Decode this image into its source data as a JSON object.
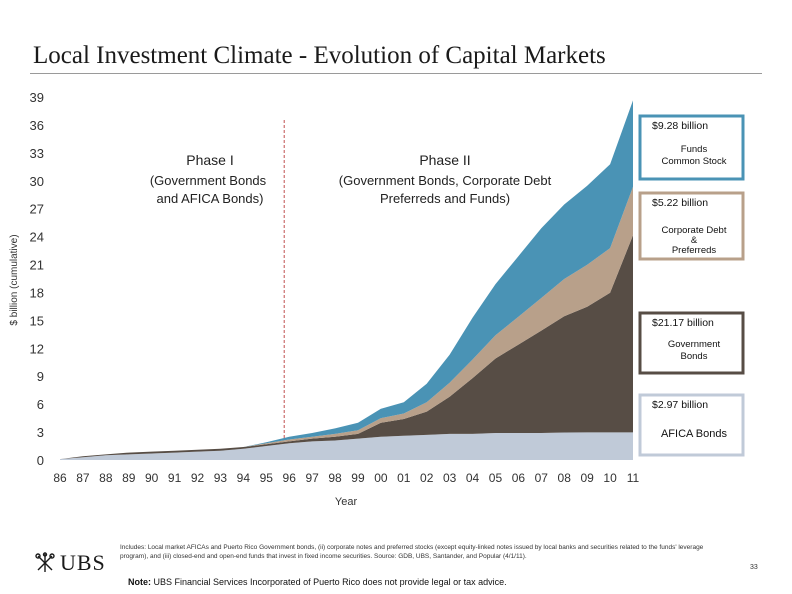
{
  "slide": {
    "title": "Local Investment Climate - Evolution of Capital Markets",
    "footnote": "Includes: Local market AFICAs and Puerto Rico Government bonds, (ii) corporate notes and preferred stocks (except equity-linked notes issued by local banks and securities related to the funds' leverage program), and (iii) closed-end and open-end funds that invest in fixed income securities. Source: GDB, UBS, Santander, and Popular (4/1/11).",
    "note_label": "Note:",
    "note_text": " UBS Financial Services Incorporated of Puerto Rico does not provide legal or tax advice.",
    "page_number": "33",
    "logo_text": "UBS"
  },
  "colors": {
    "afica": "#c0cad8",
    "government": "#574d45",
    "corporate": "#b8a08a",
    "funds": "#4a93b5"
  },
  "chart_data": {
    "type": "area",
    "stacked": true,
    "ylabel": "$ billion (cumulative)",
    "xlabel": "Year",
    "ylim": [
      0,
      39
    ],
    "yticks": [
      "0",
      "3",
      "6",
      "9",
      "12",
      "15",
      "18",
      "21",
      "24",
      "27",
      "30",
      "33",
      "36",
      "39"
    ],
    "categories": [
      "86",
      "87",
      "88",
      "89",
      "90",
      "91",
      "92",
      "93",
      "94",
      "95",
      "96",
      "97",
      "98",
      "99",
      "00",
      "01",
      "02",
      "03",
      "04",
      "05",
      "06",
      "07",
      "08",
      "09",
      "10",
      "11"
    ],
    "series": [
      {
        "name": "AFICA Bonds",
        "color_key": "afica",
        "values": [
          0.1,
          0.3,
          0.5,
          0.6,
          0.7,
          0.8,
          0.9,
          1.0,
          1.2,
          1.5,
          1.8,
          2.0,
          2.1,
          2.3,
          2.5,
          2.6,
          2.7,
          2.8,
          2.8,
          2.9,
          2.9,
          2.9,
          2.95,
          2.97,
          2.97,
          2.97
        ]
      },
      {
        "name": "Government Bonds",
        "color_key": "government",
        "values": [
          0.0,
          0.1,
          0.1,
          0.2,
          0.2,
          0.2,
          0.2,
          0.2,
          0.2,
          0.2,
          0.2,
          0.3,
          0.4,
          0.5,
          1.5,
          1.8,
          2.5,
          4.0,
          6.0,
          8.0,
          9.5,
          11.0,
          12.5,
          13.5,
          15.0,
          21.17
        ]
      },
      {
        "name": "Corporate Debt & Preferreds",
        "color_key": "corporate",
        "values": [
          0.0,
          0.0,
          0.0,
          0.0,
          0.0,
          0.0,
          0.0,
          0.0,
          0.0,
          0.1,
          0.2,
          0.2,
          0.3,
          0.4,
          0.5,
          0.6,
          1.0,
          1.5,
          2.0,
          2.5,
          3.0,
          3.5,
          4.0,
          4.5,
          4.8,
          5.22
        ]
      },
      {
        "name": "Funds Common Stock",
        "color_key": "funds",
        "values": [
          0.0,
          0.0,
          0.0,
          0.0,
          0.0,
          0.0,
          0.0,
          0.0,
          0.0,
          0.1,
          0.3,
          0.4,
          0.6,
          0.8,
          1.0,
          1.2,
          2.0,
          3.0,
          4.5,
          5.5,
          6.5,
          7.5,
          8.0,
          8.5,
          9.0,
          9.28
        ]
      }
    ],
    "phase_divider_x": "96",
    "annotations": [
      {
        "title": "Phase I",
        "text1": "(Government Bonds",
        "text2": "and AFICA Bonds)"
      },
      {
        "title": "Phase II",
        "text1": "(Government Bonds, Corporate Debt",
        "text2": "Preferreds and Funds)"
      }
    ],
    "legend": [
      {
        "amount": "$9.28 billion",
        "label1": "Funds",
        "label2": "Common Stock",
        "label3": "",
        "color_key": "funds"
      },
      {
        "amount": "$5.22 billion",
        "label1": "Corporate Debt",
        "label2": "&",
        "label3": "Preferreds",
        "color_key": "corporate"
      },
      {
        "amount": "$21.17 billion",
        "label1": "Government",
        "label2": "Bonds",
        "label3": "",
        "color_key": "government"
      },
      {
        "amount": "$2.97 billion",
        "label1": "AFICA Bonds",
        "label2": "",
        "label3": "",
        "color_key": "afica"
      }
    ],
    "legend_placement": "right",
    "grid": false
  }
}
